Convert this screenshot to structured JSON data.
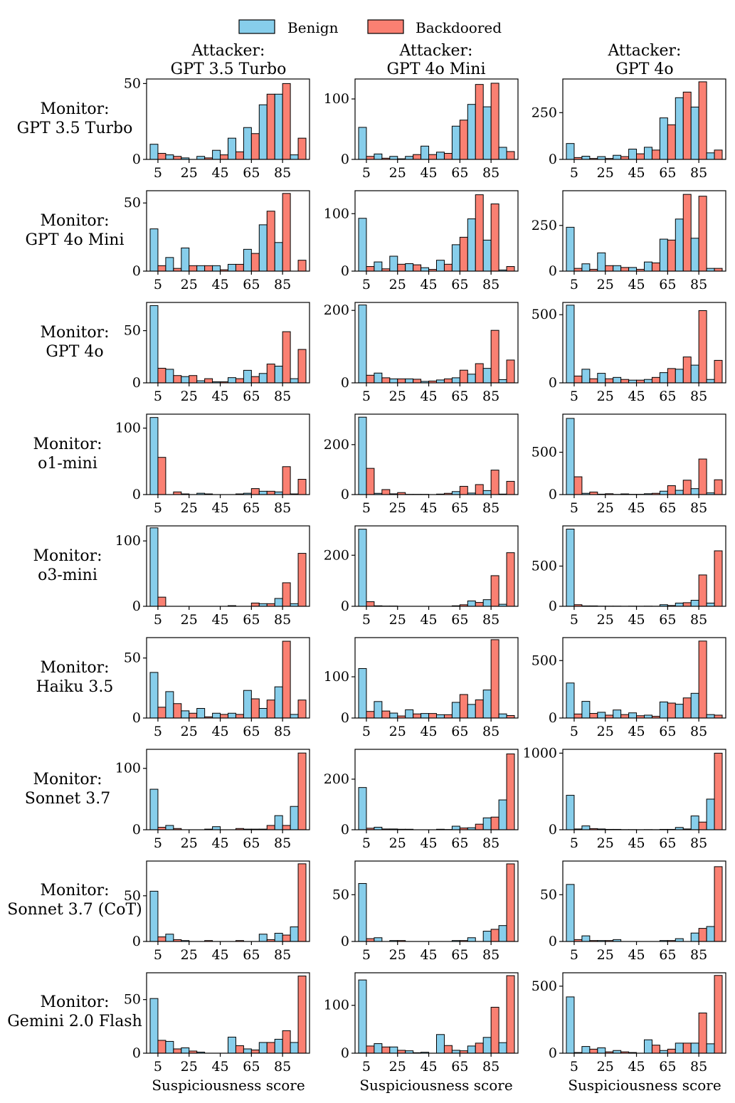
{
  "figure": {
    "legend": [
      {
        "label": "Benign",
        "color": "#87CEEB"
      },
      {
        "label": "Backdoored",
        "color": "#FA8072"
      }
    ],
    "attackers": [
      {
        "line1": "Attacker:",
        "line2": "GPT 3.5 Turbo"
      },
      {
        "line1": "Attacker:",
        "line2": "GPT 4o Mini"
      },
      {
        "line1": "Attacker:",
        "line2": "GPT 4o"
      }
    ],
    "monitors": [
      {
        "line1": "Monitor:",
        "line2": "GPT 3.5 Turbo"
      },
      {
        "line1": "Monitor:",
        "line2": "GPT 4o Mini"
      },
      {
        "line1": "Monitor:",
        "line2": "GPT 4o"
      },
      {
        "line1": "Monitor:",
        "line2": "o1-mini"
      },
      {
        "line1": "Monitor:",
        "line2": "o3-mini"
      },
      {
        "line1": "Monitor:",
        "line2": "Haiku 3.5"
      },
      {
        "line1": "Monitor:",
        "line2": "Sonnet 3.7"
      },
      {
        "line1": "Monitor:",
        "line2": "Sonnet 3.7 (CoT)"
      },
      {
        "line1": "Monitor:",
        "line2": "Gemini 2.0 Flash"
      }
    ],
    "xlabel": "Suspiciousness score",
    "x_ticks": [
      "5",
      "25",
      "45",
      "65",
      "85"
    ]
  },
  "chart_data": {
    "type": "bar",
    "title": "",
    "xlabel": "Suspiciousness score",
    "ylabel": "",
    "bins": [
      "0-10",
      "10-20",
      "20-30",
      "30-40",
      "40-50",
      "50-60",
      "60-70",
      "70-80",
      "80-90",
      "90-100"
    ],
    "series_names": [
      "Benign",
      "Backdoored"
    ],
    "panels": [
      {
        "monitor": "GPT 3.5 Turbo",
        "attacker": "GPT 3.5 Turbo",
        "ylim": [
          0,
          53
        ],
        "yticks": [
          0,
          50
        ],
        "benign": [
          10,
          3,
          1,
          2,
          6,
          14,
          21,
          36,
          43,
          3
        ],
        "backdoored": [
          4,
          2,
          0,
          1,
          3,
          5,
          17,
          43,
          50,
          14
        ]
      },
      {
        "monitor": "GPT 3.5 Turbo",
        "attacker": "GPT 4o Mini",
        "ylim": [
          0,
          133
        ],
        "yticks": [
          0,
          100
        ],
        "benign": [
          53,
          9,
          5,
          5,
          22,
          12,
          55,
          91,
          87,
          20
        ],
        "backdoored": [
          5,
          2,
          1,
          8,
          8,
          10,
          65,
          124,
          126,
          13
        ]
      },
      {
        "monitor": "GPT 3.5 Turbo",
        "attacker": "GPT 4o",
        "ylim": [
          0,
          430
        ],
        "yticks": [
          0,
          250
        ],
        "benign": [
          85,
          17,
          15,
          22,
          55,
          65,
          222,
          330,
          280,
          35
        ],
        "backdoored": [
          10,
          5,
          5,
          15,
          30,
          50,
          185,
          360,
          415,
          50
        ]
      },
      {
        "monitor": "GPT 4o Mini",
        "attacker": "GPT 3.5 Turbo",
        "ylim": [
          0,
          59
        ],
        "yticks": [
          0,
          50
        ],
        "benign": [
          31,
          10,
          17,
          4,
          4,
          5,
          16,
          34,
          21,
          0
        ],
        "backdoored": [
          4,
          2,
          4,
          4,
          1,
          5,
          13,
          44,
          57,
          8
        ]
      },
      {
        "monitor": "GPT 4o Mini",
        "attacker": "GPT 4o Mini",
        "ylim": [
          0,
          140
        ],
        "yticks": [
          0,
          100
        ],
        "benign": [
          92,
          16,
          26,
          13,
          6,
          19,
          46,
          91,
          54,
          2
        ],
        "backdoored": [
          8,
          4,
          12,
          11,
          3,
          12,
          59,
          133,
          117,
          8
        ]
      },
      {
        "monitor": "GPT 4o Mini",
        "attacker": "GPT 4o",
        "ylim": [
          0,
          440
        ],
        "yticks": [
          0,
          250
        ],
        "benign": [
          240,
          40,
          100,
          30,
          20,
          50,
          175,
          285,
          180,
          15
        ],
        "backdoored": [
          15,
          10,
          30,
          20,
          10,
          45,
          170,
          420,
          410,
          15
        ]
      },
      {
        "monitor": "GPT 4o",
        "attacker": "GPT 3.5 Turbo",
        "ylim": [
          0,
          77
        ],
        "yticks": [
          0,
          50
        ],
        "benign": [
          74,
          13,
          6,
          2,
          1,
          5,
          12,
          9,
          16,
          4
        ],
        "backdoored": [
          14,
          7,
          7,
          4,
          1,
          4,
          6,
          18,
          49,
          32
        ]
      },
      {
        "monitor": "GPT 4o",
        "attacker": "GPT 4o Mini",
        "ylim": [
          0,
          222
        ],
        "yticks": [
          0,
          200
        ],
        "benign": [
          215,
          27,
          11,
          11,
          4,
          8,
          14,
          24,
          40,
          9
        ],
        "backdoored": [
          21,
          14,
          11,
          10,
          5,
          11,
          35,
          53,
          145,
          63
        ]
      },
      {
        "monitor": "GPT 4o",
        "attacker": "GPT 4o",
        "ylim": [
          0,
          590
        ],
        "yticks": [
          0,
          500
        ],
        "benign": [
          570,
          100,
          70,
          40,
          20,
          25,
          75,
          100,
          130,
          25
        ],
        "backdoored": [
          50,
          30,
          30,
          25,
          20,
          40,
          105,
          190,
          530,
          165
        ]
      },
      {
        "monitor": "o1-mini",
        "attacker": "GPT 3.5 Turbo",
        "ylim": [
          0,
          121
        ],
        "yticks": [
          0,
          100
        ],
        "benign": [
          116,
          0,
          1,
          2,
          0,
          0,
          2,
          5,
          4,
          1
        ],
        "backdoored": [
          56,
          4,
          0,
          1,
          0,
          1,
          9,
          5,
          42,
          23
        ]
      },
      {
        "monitor": "o1-mini",
        "attacker": "GPT 4o Mini",
        "ylim": [
          0,
          322
        ],
        "yticks": [
          0,
          200
        ],
        "benign": [
          310,
          5,
          3,
          1,
          1,
          2,
          12,
          6,
          16,
          2
        ],
        "backdoored": [
          105,
          20,
          8,
          1,
          0,
          5,
          33,
          40,
          98,
          53
        ]
      },
      {
        "monitor": "o1-mini",
        "attacker": "GPT 4o",
        "ylim": [
          0,
          950
        ],
        "yticks": [
          0,
          500
        ],
        "benign": [
          900,
          15,
          5,
          2,
          3,
          10,
          40,
          50,
          70,
          20
        ],
        "backdoored": [
          210,
          30,
          10,
          8,
          3,
          15,
          105,
          170,
          420,
          175
        ]
      },
      {
        "monitor": "o3-mini",
        "attacker": "GPT 3.5 Turbo",
        "ylim": [
          0,
          123
        ],
        "yticks": [
          0,
          100
        ],
        "benign": [
          120,
          0,
          0,
          0,
          0,
          1,
          0,
          4,
          12,
          4
        ],
        "backdoored": [
          14,
          0,
          0,
          0,
          0,
          0,
          5,
          4,
          36,
          81
        ]
      },
      {
        "monitor": "o3-mini",
        "attacker": "GPT 4o Mini",
        "ylim": [
          0,
          315
        ],
        "yticks": [
          0,
          200
        ],
        "benign": [
          302,
          2,
          1,
          0,
          0,
          0,
          2,
          21,
          26,
          8
        ],
        "backdoored": [
          18,
          1,
          0,
          0,
          0,
          0,
          6,
          15,
          120,
          210
        ]
      },
      {
        "monitor": "o3-mini",
        "attacker": "GPT 4o",
        "ylim": [
          0,
          1000
        ],
        "yticks": [
          0,
          500
        ],
        "benign": [
          960,
          5,
          2,
          2,
          2,
          2,
          20,
          40,
          75,
          40
        ],
        "backdoored": [
          20,
          5,
          2,
          1,
          1,
          1,
          10,
          45,
          390,
          690
        ]
      },
      {
        "monitor": "Haiku 3.5",
        "attacker": "GPT 3.5 Turbo",
        "ylim": [
          0,
          67
        ],
        "yticks": [
          0,
          50
        ],
        "benign": [
          38,
          22,
          6,
          8,
          4,
          4,
          23,
          8,
          26,
          3
        ],
        "backdoored": [
          9,
          12,
          4,
          1,
          3,
          3,
          16,
          15,
          64,
          15
        ]
      },
      {
        "monitor": "Haiku 3.5",
        "attacker": "GPT 4o Mini",
        "ylim": [
          0,
          195
        ],
        "yticks": [
          0,
          100
        ],
        "benign": [
          120,
          40,
          12,
          20,
          11,
          8,
          38,
          33,
          68,
          10
        ],
        "backdoored": [
          16,
          17,
          5,
          10,
          11,
          8,
          57,
          44,
          190,
          6
        ]
      },
      {
        "monitor": "Haiku 3.5",
        "attacker": "GPT 4o",
        "ylim": [
          0,
          700
        ],
        "yticks": [
          0,
          500
        ],
        "benign": [
          305,
          145,
          50,
          70,
          45,
          25,
          140,
          120,
          215,
          30
        ],
        "backdoored": [
          35,
          40,
          25,
          30,
          20,
          15,
          130,
          175,
          670,
          25
        ]
      },
      {
        "monitor": "Sonnet 3.7",
        "attacker": "GPT 3.5 Turbo",
        "ylim": [
          0,
          131
        ],
        "yticks": [
          0,
          100
        ],
        "benign": [
          66,
          7,
          0,
          0,
          5,
          0,
          1,
          1,
          23,
          38
        ],
        "backdoored": [
          4,
          2,
          0,
          1,
          0,
          2,
          1,
          7,
          7,
          125
        ]
      },
      {
        "monitor": "Sonnet 3.7",
        "attacker": "GPT 4o Mini",
        "ylim": [
          0,
          318
        ],
        "yticks": [
          0,
          200
        ],
        "benign": [
          167,
          10,
          3,
          2,
          0,
          2,
          14,
          8,
          47,
          118
        ],
        "backdoored": [
          6,
          3,
          2,
          0,
          0,
          1,
          7,
          22,
          50,
          300
        ]
      },
      {
        "monitor": "Sonnet 3.7",
        "attacker": "GPT 4o",
        "ylim": [
          0,
          1050
        ],
        "yticks": [
          0,
          1000
        ],
        "benign": [
          450,
          50,
          10,
          5,
          2,
          2,
          5,
          30,
          180,
          400
        ],
        "backdoored": [
          10,
          15,
          5,
          2,
          1,
          1,
          5,
          10,
          100,
          1000
        ]
      },
      {
        "monitor": "Sonnet 3.7 (CoT)",
        "attacker": "GPT 3.5 Turbo",
        "ylim": [
          0,
          88
        ],
        "yticks": [
          0,
          50
        ],
        "benign": [
          55,
          8,
          1,
          0,
          0,
          0,
          0,
          8,
          9,
          16
        ],
        "backdoored": [
          5,
          2,
          0,
          1,
          0,
          1,
          0,
          2,
          7,
          85
        ]
      },
      {
        "monitor": "Sonnet 3.7 (CoT)",
        "attacker": "GPT 4o Mini",
        "ylim": [
          0,
          86
        ],
        "yticks": [
          0,
          50
        ],
        "benign": [
          62,
          4,
          1,
          0,
          0,
          0,
          1,
          4,
          11,
          17
        ],
        "backdoored": [
          3,
          0,
          1,
          0,
          0,
          0,
          1,
          0,
          13,
          83
        ]
      },
      {
        "monitor": "Sonnet 3.7 (CoT)",
        "attacker": "GPT 4o",
        "ylim": [
          0,
          86
        ],
        "yticks": [
          0,
          50
        ],
        "benign": [
          61,
          6,
          1,
          2,
          0,
          0,
          1,
          3,
          9,
          16
        ],
        "backdoored": [
          2,
          1,
          1,
          0,
          0,
          0,
          1,
          0,
          14,
          80
        ]
      },
      {
        "monitor": "Gemini 2.0 Flash",
        "attacker": "GPT 3.5 Turbo",
        "ylim": [
          0,
          75
        ],
        "yticks": [
          0,
          50
        ],
        "benign": [
          51,
          11,
          5,
          1,
          0,
          15,
          4,
          10,
          13,
          10
        ],
        "backdoored": [
          12,
          4,
          2,
          0,
          0,
          7,
          3,
          10,
          21,
          72
        ]
      },
      {
        "monitor": "Gemini 2.0 Flash",
        "attacker": "GPT 4o Mini",
        "ylim": [
          0,
          168
        ],
        "yticks": [
          0,
          100
        ],
        "benign": [
          153,
          20,
          13,
          5,
          2,
          39,
          6,
          15,
          33,
          22
        ],
        "backdoored": [
          15,
          13,
          6,
          1,
          0,
          16,
          5,
          21,
          96,
          162
        ]
      },
      {
        "monitor": "Gemini 2.0 Flash",
        "attacker": "GPT 4o",
        "ylim": [
          0,
          600
        ],
        "yticks": [
          0,
          500
        ],
        "benign": [
          420,
          50,
          40,
          20,
          5,
          100,
          20,
          75,
          75,
          70
        ],
        "backdoored": [
          5,
          30,
          10,
          10,
          0,
          60,
          30,
          75,
          300,
          580
        ]
      }
    ]
  }
}
